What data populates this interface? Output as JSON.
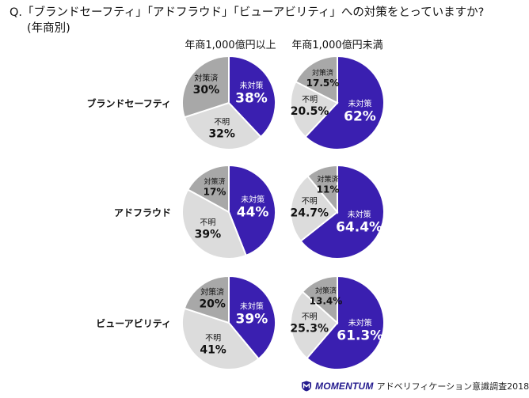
{
  "header": {
    "question": "Q.「ブランドセーフティ」「アドフラウド」「ビューアビリティ」への対策をとっていますか?",
    "subtitle": "(年商別)"
  },
  "columns": [
    "年商1,000億円以上",
    "年商1,000億円未満"
  ],
  "rows": [
    "ブランドセーフティ",
    "アドフラウド",
    "ビューアビリティ"
  ],
  "colors": {
    "未対策": "#3a1fb0",
    "対策済": "#a8a8a8",
    "不明": "#dcdcdc"
  },
  "chart_data": [
    {
      "type": "pie",
      "row": "ブランドセーフティ",
      "column": "年商1,000億円以上",
      "slices": [
        {
          "label": "未対策",
          "value": 38,
          "display": "38%"
        },
        {
          "label": "不明",
          "value": 32,
          "display": "32%"
        },
        {
          "label": "対策済",
          "value": 30,
          "display": "30%"
        }
      ]
    },
    {
      "type": "pie",
      "row": "ブランドセーフティ",
      "column": "年商1,000億円未満",
      "slices": [
        {
          "label": "未対策",
          "value": 62,
          "display": "62%"
        },
        {
          "label": "不明",
          "value": 20.5,
          "display": "20.5%"
        },
        {
          "label": "対策済",
          "value": 17.5,
          "display": "17.5%"
        }
      ]
    },
    {
      "type": "pie",
      "row": "アドフラウド",
      "column": "年商1,000億円以上",
      "slices": [
        {
          "label": "未対策",
          "value": 44,
          "display": "44%"
        },
        {
          "label": "不明",
          "value": 39,
          "display": "39%"
        },
        {
          "label": "対策済",
          "value": 17,
          "display": "17%"
        }
      ]
    },
    {
      "type": "pie",
      "row": "アドフラウド",
      "column": "年商1,000億円未満",
      "slices": [
        {
          "label": "未対策",
          "value": 64.4,
          "display": "64.4%"
        },
        {
          "label": "不明",
          "value": 24.7,
          "display": "24.7%"
        },
        {
          "label": "対策済",
          "value": 11,
          "display": "11%"
        }
      ]
    },
    {
      "type": "pie",
      "row": "ビューアビリティ",
      "column": "年商1,000億円以上",
      "slices": [
        {
          "label": "未対策",
          "value": 39,
          "display": "39%"
        },
        {
          "label": "不明",
          "value": 41,
          "display": "41%"
        },
        {
          "label": "対策済",
          "value": 20,
          "display": "20%"
        }
      ]
    },
    {
      "type": "pie",
      "row": "ビューアビリティ",
      "column": "年商1,000億円未満",
      "slices": [
        {
          "label": "未対策",
          "value": 61.3,
          "display": "61.3%"
        },
        {
          "label": "不明",
          "value": 25.3,
          "display": "25.3%"
        },
        {
          "label": "対策済",
          "value": 13.4,
          "display": "13.4%"
        }
      ]
    }
  ],
  "footer": {
    "brand": "MOMENTUM",
    "text": "アドベリフィケーション意識調査2018"
  }
}
